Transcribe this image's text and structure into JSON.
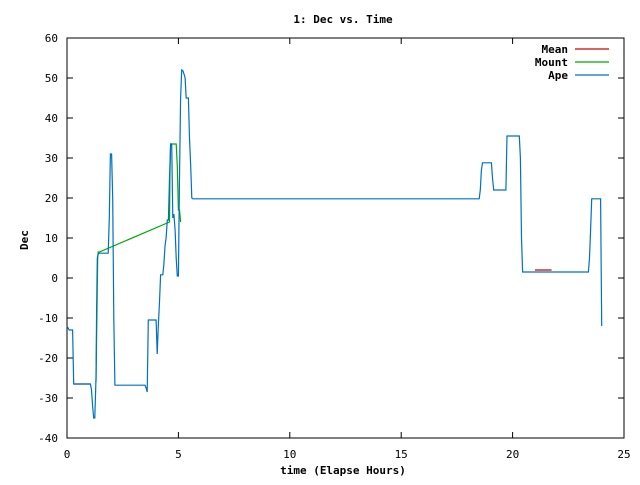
{
  "chart_data": {
    "type": "line",
    "title": "1: Dec vs. Time",
    "xlabel": "time (Elapse Hours)",
    "ylabel": "Dec",
    "xlim": [
      0,
      25
    ],
    "ylim": [
      -40,
      60
    ],
    "xticks": [
      0,
      5,
      10,
      15,
      20,
      25
    ],
    "yticks": [
      -40,
      -30,
      -20,
      -10,
      0,
      10,
      20,
      30,
      40,
      50,
      60
    ],
    "grid": false,
    "legend_position": "top-right",
    "series": [
      {
        "name": "Mean",
        "color": "#cc0000",
        "x": [
          0.3,
          1.05
        ],
        "y": [
          -26.5,
          -26.5
        ],
        "segments": [
          {
            "x": [
              0.3,
              1.05
            ],
            "y": [
              -26.5,
              -26.5
            ]
          },
          {
            "x": [
              21.0,
              21.75
            ],
            "y": [
              2.0,
              2.0
            ]
          }
        ]
      },
      {
        "name": "Mount",
        "color": "#00aa00",
        "x": [
          1.3,
          1.35,
          1.38,
          1.4,
          1.45,
          4.6,
          4.62,
          4.65,
          4.7,
          4.75,
          4.8,
          4.85,
          4.9,
          4.95,
          5.0,
          5.05,
          5.1
        ],
        "y": [
          -26,
          -6,
          5,
          6.5,
          6.5,
          14,
          25,
          33.5,
          33.5,
          33.5,
          33.5,
          33.5,
          33.5,
          28,
          17,
          17,
          14
        ]
      },
      {
        "name": "Ape",
        "color": "#0070c0",
        "x": [
          0.0,
          0.05,
          0.1,
          0.15,
          0.25,
          0.3,
          0.35,
          1.05,
          1.1,
          1.15,
          1.2,
          1.25,
          1.3,
          1.33,
          1.36,
          1.4,
          1.45,
          1.8,
          1.85,
          1.9,
          1.95,
          2.0,
          2.05,
          2.1,
          2.15,
          2.2,
          2.25,
          2.3,
          3.5,
          3.55,
          3.6,
          3.65,
          3.7,
          4.0,
          4.05,
          4.1,
          4.15,
          4.2,
          4.25,
          4.3,
          4.35,
          4.4,
          4.45,
          4.5,
          4.55,
          4.6,
          4.65,
          4.7,
          4.75,
          4.8,
          4.85,
          4.9,
          4.95,
          5.0,
          5.05,
          5.1,
          5.15,
          5.2,
          5.25,
          5.3,
          5.35,
          5.4,
          5.45,
          5.5,
          5.55,
          5.6,
          5.65,
          5.7,
          5.75,
          5.8,
          5.85,
          18.5,
          18.55,
          18.6,
          18.65,
          18.7,
          18.75,
          19.05,
          19.1,
          19.15,
          19.2,
          19.7,
          19.75,
          19.8,
          20.3,
          20.35,
          20.4,
          20.45,
          20.5,
          20.55,
          21.0,
          21.8,
          23.4,
          23.45,
          23.5,
          23.55,
          23.6,
          23.95,
          23.97,
          24.0
        ],
        "y": [
          -12,
          -12.5,
          -13,
          -13,
          -13,
          -26.5,
          -26.5,
          -26.5,
          -28,
          -32,
          -35,
          -35,
          -25,
          -8,
          5,
          6,
          6.2,
          6.2,
          6.2,
          15,
          31,
          31,
          20,
          -10,
          -26.8,
          -26.8,
          -26.8,
          -26.8,
          -26.8,
          -27.5,
          -28.5,
          -10.5,
          -10.5,
          -10.5,
          -19,
          -12,
          -6,
          0.8,
          0.8,
          0.8,
          3.5,
          8,
          10,
          14.5,
          14.5,
          25,
          33.5,
          33.5,
          15,
          16,
          12,
          5,
          0.5,
          0.5,
          25,
          45,
          52,
          51.8,
          51,
          50,
          45,
          45,
          45,
          35,
          28,
          20,
          19.8,
          19.8,
          19.8,
          19.8,
          19.8,
          19.8,
          22,
          27,
          28.8,
          28.8,
          28.8,
          28.8,
          25,
          22,
          22,
          22,
          35.5,
          35.5,
          35.5,
          30,
          10,
          1.5,
          1.5,
          1.5,
          1.5,
          1.5,
          1.5,
          5,
          12,
          19.8,
          19.8,
          19.8,
          5,
          -12
        ]
      }
    ]
  }
}
